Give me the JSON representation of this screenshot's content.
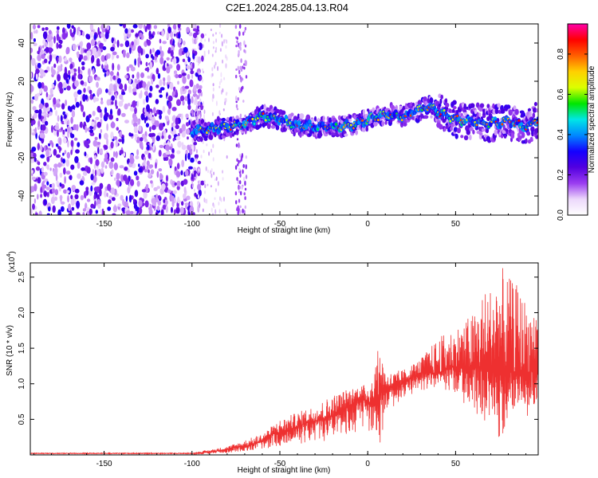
{
  "figure": {
    "title": "C2E1.2024.285.04.13.R04",
    "background": "#ffffff"
  },
  "chart_data": [
    {
      "type": "heatmap",
      "xlabel": "Height of straight line (km)",
      "ylabel": "Frequency (Hz)",
      "xlim": [
        -192,
        97
      ],
      "ylim": [
        -50,
        50
      ],
      "x_ticks": [
        -150,
        -100,
        -50,
        0,
        50
      ],
      "y_ticks": [
        -40,
        -20,
        0,
        20,
        40
      ],
      "colorbar": {
        "label": "Normalized spectral amplitude",
        "range": [
          0,
          0.95
        ],
        "ticks": [
          "0.0",
          "0.2",
          "0.4",
          "0.6",
          "0.8"
        ],
        "colormap": [
          "#ffffff",
          "#ecd8fb",
          "#9a3cf0",
          "#5200e0",
          "#1400ff",
          "#0088ff",
          "#00e6e6",
          "#00e600",
          "#dcff00",
          "#ffd000",
          "#ff6000",
          "#ff0000",
          "#ff00aa"
        ]
      },
      "description_points": {
        "noise_region_x": [
          -192,
          -100
        ],
        "signal_track": {
          "x": [
            -100,
            -90,
            -80,
            -70,
            -60,
            -50,
            -40,
            -30,
            -20,
            -10,
            0,
            10,
            20,
            30,
            35,
            40,
            50,
            60,
            70,
            80,
            90,
            97
          ],
          "frequency": [
            -6,
            -5,
            -4,
            -2,
            2,
            0,
            -3,
            -4,
            -4,
            -3,
            0,
            3,
            2,
            5,
            7,
            4,
            0,
            -1,
            -2,
            -1,
            -4,
            0
          ]
        }
      }
    },
    {
      "type": "line",
      "xlabel": "Height of straight line (km)",
      "ylabel": "SNR (10 * v/v)",
      "y_scale_label": "(x10",
      "y_scale_exponent": "4",
      "xlim": [
        -192,
        97
      ],
      "ylim": [
        0,
        2.7
      ],
      "x_ticks": [
        -150,
        -100,
        -50,
        0,
        50
      ],
      "y_ticks": [
        "0.5",
        "1.0",
        "1.5",
        "2.0",
        "2.5"
      ],
      "y_tick_values": [
        0.5,
        1.0,
        1.5,
        2.0,
        2.5
      ],
      "color": "#ee3030",
      "series": [
        {
          "x": [
            -192,
            -150,
            -110,
            -100,
            -95,
            -90,
            -85,
            -80,
            -75,
            -70,
            -65,
            -60,
            -55,
            -50,
            -45,
            -40,
            -35,
            -30,
            -25,
            -20,
            -15,
            -10,
            -5,
            0,
            5,
            8,
            10,
            15,
            20,
            25,
            30,
            35,
            40,
            45,
            50,
            55,
            60,
            65,
            70,
            75,
            80,
            85,
            90,
            97
          ],
          "y": [
            0.02,
            0.02,
            0.02,
            0.02,
            0.03,
            0.04,
            0.06,
            0.08,
            0.1,
            0.12,
            0.15,
            0.2,
            0.28,
            0.32,
            0.35,
            0.4,
            0.45,
            0.48,
            0.5,
            0.55,
            0.6,
            0.7,
            0.8,
            0.75,
            0.7,
            0.9,
            0.95,
            0.95,
            1.0,
            1.1,
            1.15,
            1.15,
            1.15,
            1.2,
            1.25,
            1.2,
            1.25,
            1.2,
            1.2,
            1.25,
            1.2,
            1.15,
            1.15,
            1.2
          ]
        }
      ],
      "noise_envelope": {
        "x": [
          -192,
          -100,
          -80,
          -60,
          -50,
          -40,
          -30,
          -20,
          -10,
          0,
          8,
          10,
          20,
          30,
          40,
          50,
          60,
          65,
          70,
          75,
          80,
          85,
          90,
          97
        ],
        "high": [
          0.03,
          0.03,
          0.12,
          0.3,
          0.5,
          0.6,
          0.7,
          0.85,
          0.95,
          1.0,
          1.65,
          1.15,
          1.2,
          1.35,
          1.65,
          1.8,
          2.0,
          2.3,
          2.4,
          2.7,
          2.5,
          2.4,
          2.2,
          2.15
        ],
        "low": [
          0.0,
          0.0,
          0.03,
          0.08,
          0.12,
          0.15,
          0.18,
          0.2,
          0.3,
          0.35,
          0.1,
          0.55,
          0.8,
          0.9,
          0.95,
          0.85,
          0.6,
          0.4,
          0.45,
          0.15,
          0.5,
          0.6,
          0.5,
          0.8
        ]
      }
    }
  ]
}
